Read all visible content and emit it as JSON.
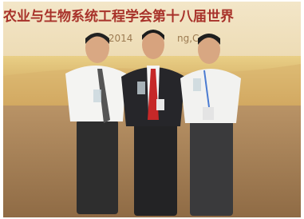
{
  "banner": {
    "title": "农业与生物系统工程学会第十八届世界",
    "date": ".2014",
    "place": "ng,C"
  }
}
